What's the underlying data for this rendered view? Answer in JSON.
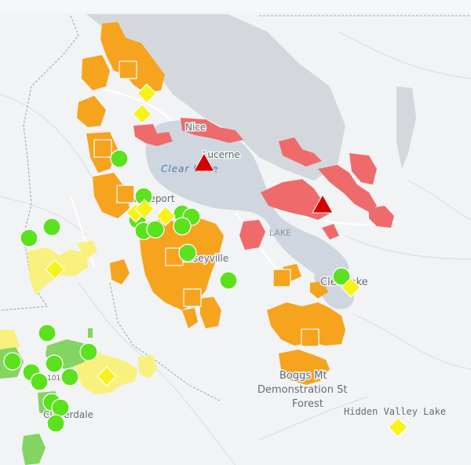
{
  "map": {
    "labels": {
      "nice": "Nice",
      "lucerne": "Lucerne",
      "clear_lake": "Clear Lake",
      "lakeport": "Lakeport",
      "kelseyville": "Kelseyville",
      "lake_county": "LAKE",
      "clearlake": "Clearlake",
      "boggs_1": "Boggs Mt",
      "boggs_2": "Demonstration St",
      "boggs_3": "Forest",
      "hidden_valley": "Hidden Valley Lake",
      "cloverdale": "Cloverdale",
      "hwy_101": "101"
    },
    "colors": {
      "water": "#cfd6df",
      "land": "#f3f4f6",
      "forest": "#d3d7dc",
      "red_zone": "#ef6b6b",
      "orange_zone": "#f6a31e",
      "yellow_zone": "#f7f07a",
      "green_zone": "#7fd15a",
      "green_marker": "#5ce11f",
      "yellow_marker": "#f7f21a",
      "orange_marker": "#f6a31e",
      "red_marker": "#d40000"
    },
    "marker_types": [
      "green-circle",
      "yellow-diamond",
      "orange-square",
      "red-triangle"
    ]
  }
}
